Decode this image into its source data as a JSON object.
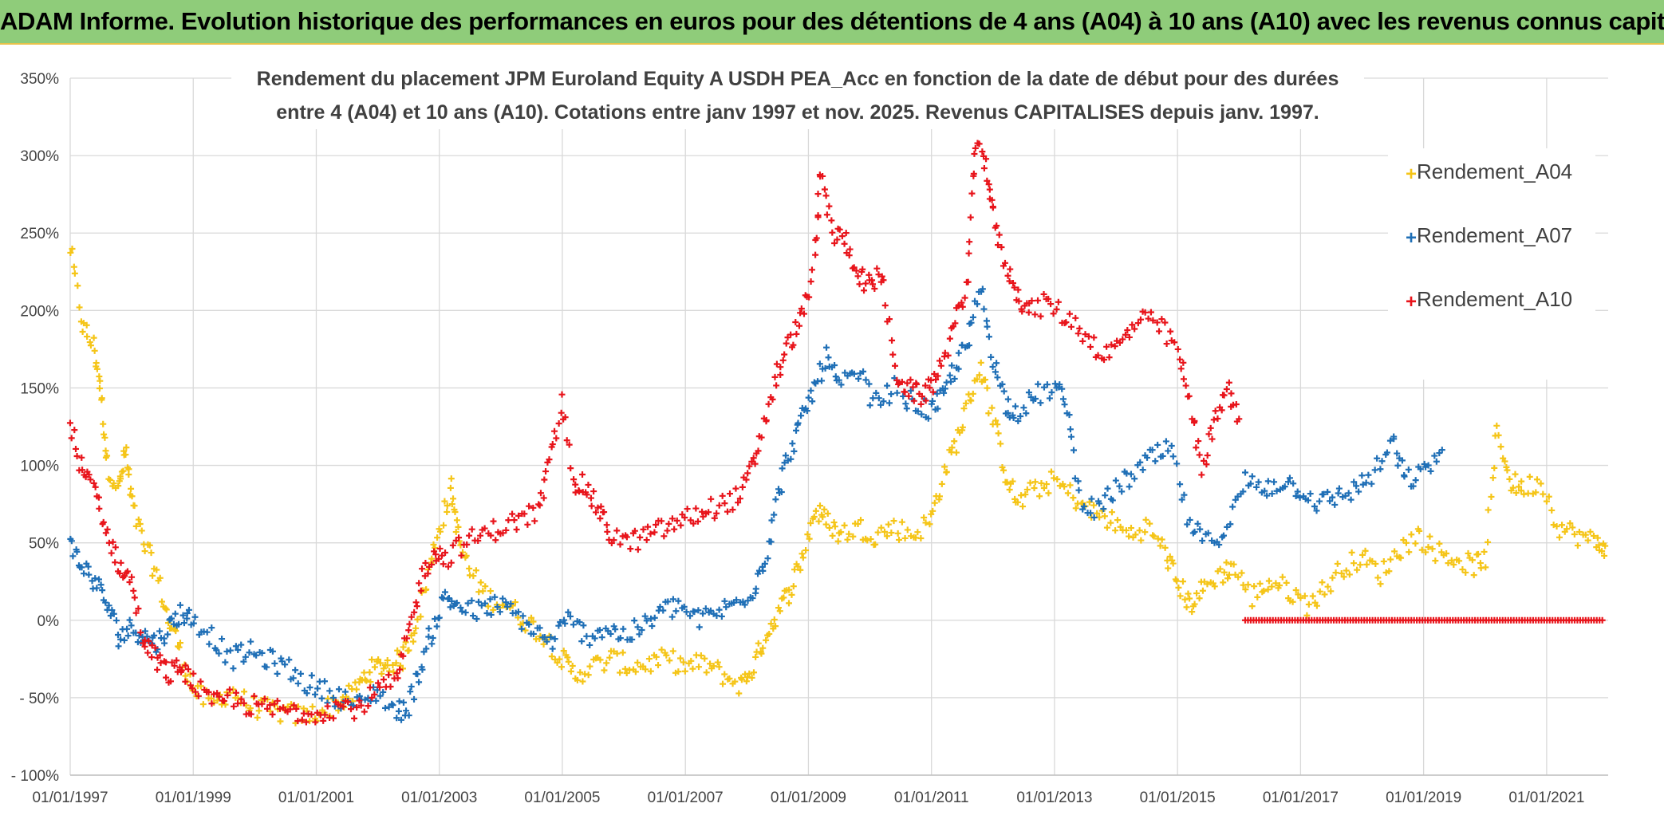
{
  "header": {
    "title": "ADAM Informe. Evolution historique des performances en euros pour des détentions de 4 ans (A04) à 10 ans (A10) avec les revenus connus capitalisés"
  },
  "colors": {
    "banner": "#8fcc7a",
    "A04": "#f5c518",
    "A07": "#1f6fb6",
    "A10": "#e8141b",
    "grid": "#d9d9d9"
  },
  "chart_data": {
    "type": "scatter",
    "title_line1": "Rendement du placement JPM Euroland Equity A USDH PEA_Acc en fonction de la date de début pour des durées",
    "title_line2": "entre 4 (A04) et 10 ans (A10). Cotations entre janv 1997 et nov. 2025. Revenus CAPITALISES depuis janv. 1997.",
    "x_unit": "years since 01/01/1997",
    "xlim": [
      0,
      25
    ],
    "ylim": [
      -100,
      350
    ],
    "y_ticks": [
      {
        "value": 350,
        "label": "350%"
      },
      {
        "value": 300,
        "label": "300%"
      },
      {
        "value": 250,
        "label": "250%"
      },
      {
        "value": 200,
        "label": "200%"
      },
      {
        "value": 150,
        "label": "150%"
      },
      {
        "value": 100,
        "label": "100%"
      },
      {
        "value": 50,
        "label": "50%"
      },
      {
        "value": 0,
        "label": "0%"
      },
      {
        "value": -50,
        "label": "- 50%"
      },
      {
        "value": -100,
        "label": "- 100%"
      }
    ],
    "x_ticks": [
      {
        "value": 0,
        "label": "01/01/1997"
      },
      {
        "value": 2,
        "label": "01/01/1999"
      },
      {
        "value": 4,
        "label": "01/01/2001"
      },
      {
        "value": 6,
        "label": "01/01/2003"
      },
      {
        "value": 8,
        "label": "01/01/2005"
      },
      {
        "value": 10,
        "label": "01/01/2007"
      },
      {
        "value": 12,
        "label": "01/01/2009"
      },
      {
        "value": 14,
        "label": "01/01/2011"
      },
      {
        "value": 16,
        "label": "01/01/2013"
      },
      {
        "value": 18,
        "label": "01/01/2015"
      },
      {
        "value": 20,
        "label": "01/01/2017"
      },
      {
        "value": 22,
        "label": "01/01/2019"
      },
      {
        "value": 24,
        "label": "01/01/2021"
      }
    ],
    "legend_position": "top-right",
    "series": [
      {
        "name": "Rendement_A04",
        "color": "#f5c518",
        "points": [
          [
            0.0,
            240
          ],
          [
            0.2,
            190
          ],
          [
            0.4,
            175
          ],
          [
            0.5,
            145
          ],
          [
            0.6,
            100
          ],
          [
            0.8,
            85
          ],
          [
            0.9,
            110
          ],
          [
            1.0,
            75
          ],
          [
            1.2,
            50
          ],
          [
            1.4,
            30
          ],
          [
            1.6,
            0
          ],
          [
            1.8,
            -20
          ],
          [
            2.0,
            -45
          ],
          [
            2.3,
            -55
          ],
          [
            2.6,
            -45
          ],
          [
            2.9,
            -55
          ],
          [
            3.2,
            -58
          ],
          [
            3.5,
            -60
          ],
          [
            3.8,
            -62
          ],
          [
            4.1,
            -58
          ],
          [
            4.4,
            -52
          ],
          [
            4.6,
            -48
          ],
          [
            4.8,
            -35
          ],
          [
            5.0,
            -30
          ],
          [
            5.2,
            -28
          ],
          [
            5.4,
            -25
          ],
          [
            5.6,
            -5
          ],
          [
            5.8,
            25
          ],
          [
            6.0,
            60
          ],
          [
            6.2,
            85
          ],
          [
            6.3,
            55
          ],
          [
            6.5,
            30
          ],
          [
            6.8,
            15
          ],
          [
            7.1,
            10
          ],
          [
            7.4,
            0
          ],
          [
            7.7,
            -10
          ],
          [
            8.0,
            -25
          ],
          [
            8.2,
            -35
          ],
          [
            8.5,
            -30
          ],
          [
            8.8,
            -25
          ],
          [
            9.1,
            -30
          ],
          [
            9.4,
            -28
          ],
          [
            9.7,
            -25
          ],
          [
            10.0,
            -30
          ],
          [
            10.3,
            -28
          ],
          [
            10.6,
            -35
          ],
          [
            10.9,
            -42
          ],
          [
            11.1,
            -30
          ],
          [
            11.3,
            -10
          ],
          [
            11.5,
            5
          ],
          [
            11.7,
            20
          ],
          [
            11.9,
            40
          ],
          [
            12.1,
            70
          ],
          [
            12.3,
            65
          ],
          [
            12.5,
            55
          ],
          [
            12.8,
            60
          ],
          [
            13.1,
            55
          ],
          [
            13.4,
            60
          ],
          [
            13.7,
            55
          ],
          [
            14.0,
            65
          ],
          [
            14.2,
            95
          ],
          [
            14.4,
            115
          ],
          [
            14.6,
            140
          ],
          [
            14.8,
            165
          ],
          [
            15.0,
            130
          ],
          [
            15.2,
            95
          ],
          [
            15.4,
            75
          ],
          [
            15.7,
            85
          ],
          [
            16.0,
            90
          ],
          [
            16.3,
            80
          ],
          [
            16.6,
            70
          ],
          [
            16.9,
            65
          ],
          [
            17.2,
            55
          ],
          [
            17.5,
            60
          ],
          [
            17.8,
            45
          ],
          [
            18.0,
            25
          ],
          [
            18.2,
            10
          ],
          [
            18.4,
            20
          ],
          [
            18.7,
            30
          ],
          [
            18.9,
            35
          ],
          [
            19.2,
            15
          ],
          [
            19.5,
            25
          ],
          [
            19.8,
            20
          ],
          [
            20.1,
            10
          ],
          [
            20.4,
            20
          ],
          [
            20.7,
            35
          ],
          [
            21.0,
            40
          ],
          [
            21.3,
            30
          ],
          [
            21.6,
            45
          ],
          [
            21.9,
            55
          ],
          [
            22.2,
            45
          ],
          [
            22.5,
            40
          ],
          [
            22.8,
            35
          ],
          [
            23.0,
            40
          ],
          [
            23.2,
            125
          ],
          [
            23.4,
            90
          ],
          [
            23.6,
            85
          ],
          [
            23.9,
            90
          ],
          [
            24.2,
            60
          ],
          [
            24.5,
            55
          ],
          [
            24.8,
            50
          ],
          [
            24.95,
            48
          ]
        ]
      },
      {
        "name": "Rendement_A07",
        "color": "#1f6fb6",
        "points": [
          [
            0.0,
            48
          ],
          [
            0.2,
            35
          ],
          [
            0.4,
            25
          ],
          [
            0.6,
            10
          ],
          [
            0.8,
            -10
          ],
          [
            1.0,
            -5
          ],
          [
            1.2,
            -10
          ],
          [
            1.4,
            -15
          ],
          [
            1.6,
            -5
          ],
          [
            1.8,
            5
          ],
          [
            2.0,
            0
          ],
          [
            2.3,
            -10
          ],
          [
            2.6,
            -25
          ],
          [
            2.9,
            -20
          ],
          [
            3.2,
            -25
          ],
          [
            3.5,
            -30
          ],
          [
            3.8,
            -40
          ],
          [
            4.1,
            -45
          ],
          [
            4.4,
            -50
          ],
          [
            4.7,
            -55
          ],
          [
            5.0,
            -45
          ],
          [
            5.3,
            -60
          ],
          [
            5.5,
            -55
          ],
          [
            5.7,
            -30
          ],
          [
            5.9,
            -5
          ],
          [
            6.1,
            15
          ],
          [
            6.3,
            10
          ],
          [
            6.6,
            5
          ],
          [
            6.9,
            10
          ],
          [
            7.2,
            5
          ],
          [
            7.5,
            -5
          ],
          [
            7.8,
            -15
          ],
          [
            8.1,
            0
          ],
          [
            8.4,
            -10
          ],
          [
            8.7,
            -5
          ],
          [
            9.0,
            -10
          ],
          [
            9.3,
            -5
          ],
          [
            9.6,
            5
          ],
          [
            9.9,
            10
          ],
          [
            10.2,
            0
          ],
          [
            10.5,
            5
          ],
          [
            10.8,
            10
          ],
          [
            11.1,
            20
          ],
          [
            11.3,
            40
          ],
          [
            11.5,
            80
          ],
          [
            11.7,
            110
          ],
          [
            11.9,
            130
          ],
          [
            12.1,
            150
          ],
          [
            12.3,
            170
          ],
          [
            12.5,
            150
          ],
          [
            12.8,
            160
          ],
          [
            13.1,
            140
          ],
          [
            13.4,
            150
          ],
          [
            13.7,
            140
          ],
          [
            14.0,
            135
          ],
          [
            14.2,
            145
          ],
          [
            14.4,
            165
          ],
          [
            14.6,
            180
          ],
          [
            14.8,
            215
          ],
          [
            15.0,
            170
          ],
          [
            15.2,
            140
          ],
          [
            15.4,
            135
          ],
          [
            15.7,
            145
          ],
          [
            16.0,
            150
          ],
          [
            16.2,
            140
          ],
          [
            16.4,
            80
          ],
          [
            16.7,
            70
          ],
          [
            17.0,
            85
          ],
          [
            17.3,
            95
          ],
          [
            17.6,
            105
          ],
          [
            17.9,
            110
          ],
          [
            18.2,
            60
          ],
          [
            18.5,
            50
          ],
          [
            18.8,
            60
          ],
          [
            19.1,
            90
          ],
          [
            19.4,
            85
          ],
          [
            19.7,
            90
          ],
          [
            20.0,
            85
          ],
          [
            20.3,
            75
          ],
          [
            20.6,
            80
          ],
          [
            20.9,
            85
          ],
          [
            21.2,
            95
          ],
          [
            21.5,
            115
          ],
          [
            21.7,
            90
          ],
          [
            22.0,
            95
          ],
          [
            22.3,
            110
          ]
        ]
      },
      {
        "name": "Rendement_A10",
        "color": "#e8141b",
        "points": [
          [
            0.0,
            125
          ],
          [
            0.2,
            95
          ],
          [
            0.4,
            85
          ],
          [
            0.6,
            55
          ],
          [
            0.8,
            35
          ],
          [
            1.0,
            25
          ],
          [
            1.2,
            -15
          ],
          [
            1.4,
            -25
          ],
          [
            1.6,
            -35
          ],
          [
            1.8,
            -30
          ],
          [
            2.0,
            -40
          ],
          [
            2.3,
            -55
          ],
          [
            2.6,
            -50
          ],
          [
            2.9,
            -55
          ],
          [
            3.2,
            -57
          ],
          [
            3.5,
            -58
          ],
          [
            3.8,
            -60
          ],
          [
            4.1,
            -58
          ],
          [
            4.4,
            -55
          ],
          [
            4.7,
            -57
          ],
          [
            5.0,
            -45
          ],
          [
            5.3,
            -40
          ],
          [
            5.5,
            -10
          ],
          [
            5.7,
            25
          ],
          [
            5.9,
            45
          ],
          [
            6.1,
            40
          ],
          [
            6.4,
            50
          ],
          [
            6.7,
            55
          ],
          [
            7.0,
            60
          ],
          [
            7.3,
            65
          ],
          [
            7.6,
            70
          ],
          [
            7.8,
            100
          ],
          [
            8.0,
            140
          ],
          [
            8.2,
            90
          ],
          [
            8.4,
            85
          ],
          [
            8.6,
            70
          ],
          [
            8.8,
            55
          ],
          [
            9.1,
            50
          ],
          [
            9.4,
            55
          ],
          [
            9.7,
            60
          ],
          [
            10.0,
            65
          ],
          [
            10.3,
            70
          ],
          [
            10.6,
            75
          ],
          [
            10.9,
            80
          ],
          [
            11.1,
            100
          ],
          [
            11.3,
            130
          ],
          [
            11.5,
            160
          ],
          [
            11.7,
            180
          ],
          [
            11.9,
            195
          ],
          [
            12.1,
            230
          ],
          [
            12.2,
            290
          ],
          [
            12.4,
            250
          ],
          [
            12.6,
            245
          ],
          [
            12.8,
            225
          ],
          [
            13.0,
            215
          ],
          [
            13.2,
            225
          ],
          [
            13.4,
            160
          ],
          [
            13.6,
            150
          ],
          [
            13.8,
            145
          ],
          [
            14.0,
            150
          ],
          [
            14.2,
            170
          ],
          [
            14.4,
            195
          ],
          [
            14.6,
            220
          ],
          [
            14.7,
            305
          ],
          [
            14.9,
            295
          ],
          [
            15.0,
            260
          ],
          [
            15.2,
            230
          ],
          [
            15.4,
            210
          ],
          [
            15.6,
            200
          ],
          [
            15.9,
            205
          ],
          [
            16.2,
            195
          ],
          [
            16.5,
            185
          ],
          [
            16.8,
            170
          ],
          [
            17.1,
            180
          ],
          [
            17.4,
            195
          ],
          [
            17.7,
            190
          ],
          [
            18.0,
            175
          ],
          [
            18.2,
            140
          ],
          [
            18.4,
            100
          ],
          [
            18.6,
            125
          ],
          [
            18.8,
            150
          ],
          [
            19.0,
            130
          ]
        ]
      }
    ],
    "flat_zero_A10": {
      "from": 19.1,
      "to": 24.95,
      "value": 0
    }
  }
}
